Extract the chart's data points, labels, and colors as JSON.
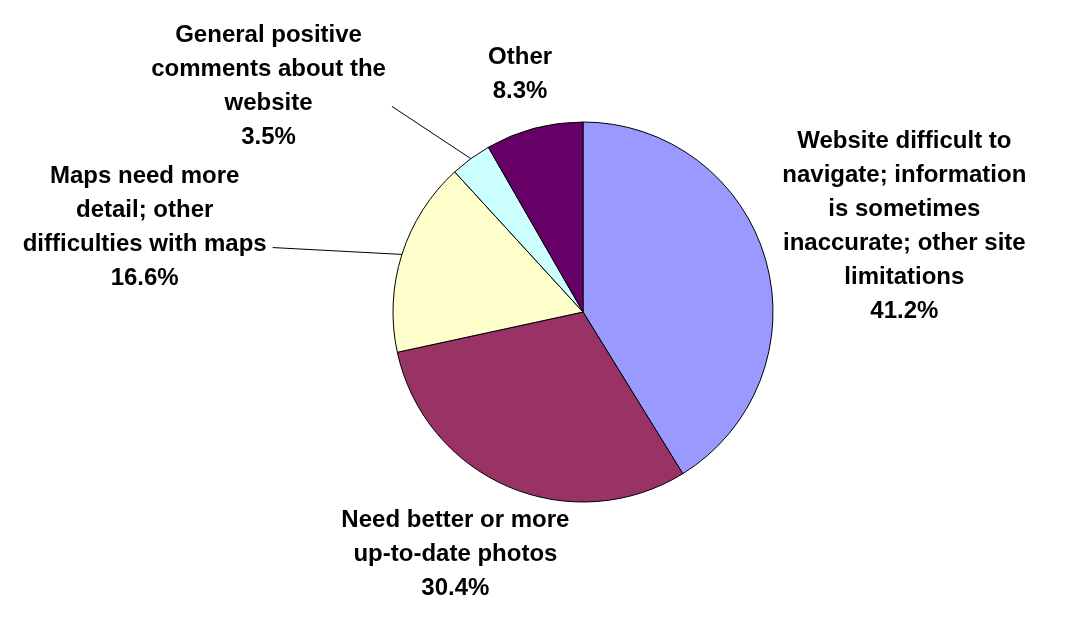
{
  "chart_data": {
    "type": "pie",
    "categories": [
      "Website difficult to navigate; information is sometimes inaccurate; other site limitations",
      "Need better or more up-to-date photos",
      "Maps need more detail; other difficulties with maps",
      "General positive comments about the website",
      "Other"
    ],
    "values": [
      41.2,
      30.4,
      16.6,
      3.5,
      8.3
    ],
    "colors": [
      "#9999ff",
      "#993366",
      "#ffffcc",
      "#ccffff",
      "#660066"
    ],
    "value_labels": [
      "41.2%",
      "30.4%",
      "16.6%",
      "3.5%",
      "8.3%"
    ]
  }
}
